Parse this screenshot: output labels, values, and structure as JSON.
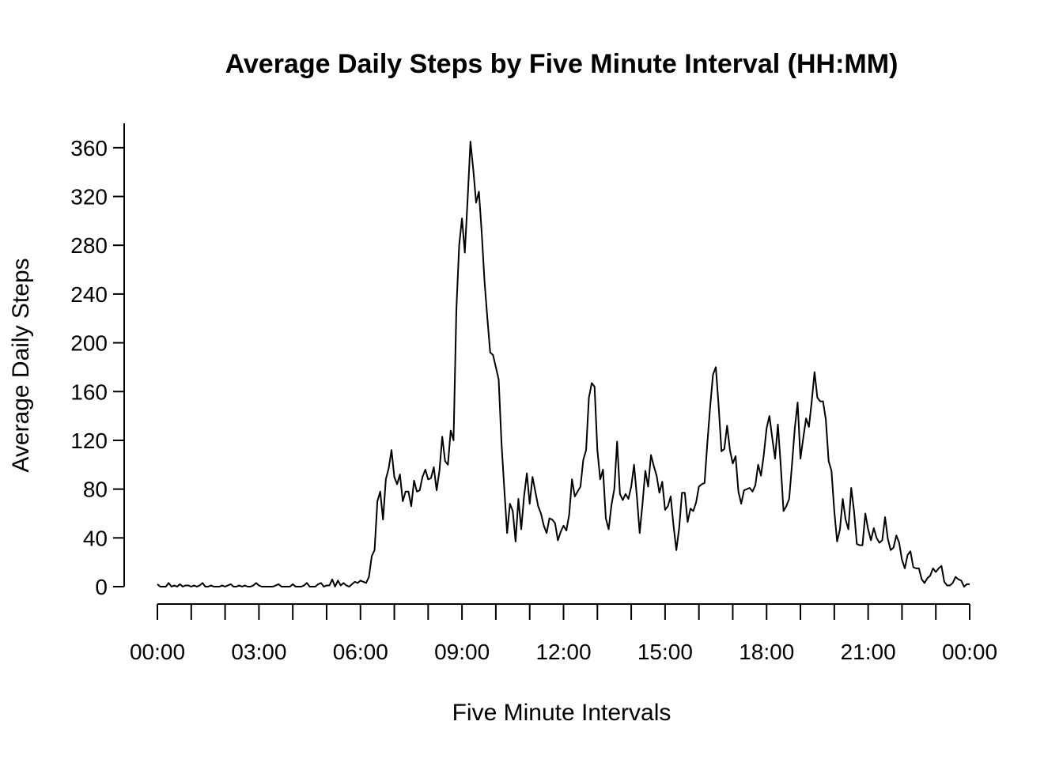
{
  "chart_data": {
    "type": "line",
    "title": "Average Daily Steps by Five Minute Interval (HH:MM)",
    "xlabel": "Five Minute Intervals",
    "ylabel": "Average Daily Steps",
    "xlim": [
      0,
      288
    ],
    "ylim": [
      0,
      380
    ],
    "x_ticks": [
      0,
      36,
      72,
      108,
      144,
      180,
      216,
      252,
      288
    ],
    "x_tick_labels": [
      "00:00",
      "03:00",
      "06:00",
      "09:00",
      "12:00",
      "15:00",
      "18:00",
      "21:00",
      "00:00"
    ],
    "x_minor_ticks": [
      0,
      12,
      24,
      36,
      48,
      60,
      72,
      84,
      96,
      108,
      120,
      132,
      144,
      156,
      168,
      180,
      192,
      204,
      216,
      228,
      240,
      252,
      264,
      276,
      288
    ],
    "y_ticks": [
      0,
      40,
      80,
      120,
      160,
      200,
      240,
      280,
      320,
      360
    ],
    "y_tick_labels": [
      "0",
      "40",
      "80",
      "120",
      "160",
      "200",
      "240",
      "280",
      "320",
      "360"
    ],
    "grid": false,
    "line_color": "#000000",
    "series": [
      {
        "points": [
          [
            0,
            2
          ],
          [
            1,
            0
          ],
          [
            2,
            0
          ],
          [
            3,
            0
          ],
          [
            4,
            3
          ],
          [
            5,
            0
          ],
          [
            6,
            1
          ],
          [
            7,
            0
          ],
          [
            8,
            2
          ],
          [
            9,
            0
          ],
          [
            10,
            1
          ],
          [
            11,
            1
          ],
          [
            12,
            0
          ],
          [
            13,
            1
          ],
          [
            14,
            0
          ],
          [
            15,
            1
          ],
          [
            16,
            3
          ],
          [
            17,
            0
          ],
          [
            18,
            0
          ],
          [
            19,
            1
          ],
          [
            20,
            0
          ],
          [
            21,
            0
          ],
          [
            22,
            0
          ],
          [
            23,
            1
          ],
          [
            24,
            0
          ],
          [
            25,
            1
          ],
          [
            26,
            2
          ],
          [
            27,
            0
          ],
          [
            28,
            0
          ],
          [
            29,
            1
          ],
          [
            30,
            0
          ],
          [
            31,
            1
          ],
          [
            32,
            0
          ],
          [
            33,
            0
          ],
          [
            34,
            1
          ],
          [
            35,
            3
          ],
          [
            36,
            1
          ],
          [
            37,
            0
          ],
          [
            38,
            0
          ],
          [
            39,
            0
          ],
          [
            40,
            0
          ],
          [
            41,
            0
          ],
          [
            42,
            1
          ],
          [
            43,
            2
          ],
          [
            44,
            0
          ],
          [
            45,
            0
          ],
          [
            46,
            0
          ],
          [
            47,
            0
          ],
          [
            48,
            2
          ],
          [
            49,
            0
          ],
          [
            50,
            0
          ],
          [
            51,
            0
          ],
          [
            52,
            1
          ],
          [
            53,
            3
          ],
          [
            54,
            0
          ],
          [
            55,
            0
          ],
          [
            56,
            0
          ],
          [
            57,
            2
          ],
          [
            58,
            3
          ],
          [
            59,
            0
          ],
          [
            60,
            1
          ],
          [
            61,
            1
          ],
          [
            62,
            6
          ],
          [
            63,
            0
          ],
          [
            64,
            5
          ],
          [
            65,
            1
          ],
          [
            66,
            3
          ],
          [
            67,
            1
          ],
          [
            68,
            0
          ],
          [
            69,
            2
          ],
          [
            70,
            4
          ],
          [
            71,
            3
          ],
          [
            72,
            5
          ],
          [
            73,
            4
          ],
          [
            74,
            3
          ],
          [
            75,
            8
          ],
          [
            76,
            25
          ],
          [
            77,
            30
          ],
          [
            78,
            70
          ],
          [
            79,
            78
          ],
          [
            80,
            55
          ],
          [
            81,
            88
          ],
          [
            82,
            97
          ],
          [
            83,
            112
          ],
          [
            84,
            90
          ],
          [
            85,
            84
          ],
          [
            86,
            92
          ],
          [
            87,
            70
          ],
          [
            88,
            78
          ],
          [
            89,
            78
          ],
          [
            90,
            66
          ],
          [
            91,
            87
          ],
          [
            92,
            78
          ],
          [
            93,
            79
          ],
          [
            94,
            90
          ],
          [
            95,
            96
          ],
          [
            96,
            88
          ],
          [
            97,
            89
          ],
          [
            98,
            98
          ],
          [
            99,
            79
          ],
          [
            100,
            95
          ],
          [
            101,
            123
          ],
          [
            102,
            103
          ],
          [
            103,
            100
          ],
          [
            104,
            128
          ],
          [
            105,
            120
          ],
          [
            106,
            227
          ],
          [
            107,
            280
          ],
          [
            108,
            302
          ],
          [
            109,
            274
          ],
          [
            110,
            318
          ],
          [
            111,
            365
          ],
          [
            112,
            342
          ],
          [
            113,
            315
          ],
          [
            114,
            324
          ],
          [
            115,
            290
          ],
          [
            116,
            250
          ],
          [
            117,
            220
          ],
          [
            118,
            192
          ],
          [
            119,
            190
          ],
          [
            120,
            180
          ],
          [
            121,
            170
          ],
          [
            122,
            118
          ],
          [
            123,
            80
          ],
          [
            124,
            44
          ],
          [
            125,
            68
          ],
          [
            126,
            62
          ],
          [
            127,
            37
          ],
          [
            128,
            72
          ],
          [
            129,
            47
          ],
          [
            130,
            74
          ],
          [
            131,
            93
          ],
          [
            132,
            68
          ],
          [
            133,
            90
          ],
          [
            134,
            78
          ],
          [
            135,
            66
          ],
          [
            136,
            60
          ],
          [
            137,
            50
          ],
          [
            138,
            44
          ],
          [
            139,
            56
          ],
          [
            140,
            55
          ],
          [
            141,
            52
          ],
          [
            142,
            38
          ],
          [
            143,
            45
          ],
          [
            144,
            50
          ],
          [
            145,
            46
          ],
          [
            146,
            59
          ],
          [
            147,
            88
          ],
          [
            148,
            74
          ],
          [
            149,
            78
          ],
          [
            150,
            82
          ],
          [
            151,
            104
          ],
          [
            152,
            112
          ],
          [
            153,
            155
          ],
          [
            154,
            167
          ],
          [
            155,
            164
          ],
          [
            156,
            112
          ],
          [
            157,
            88
          ],
          [
            158,
            96
          ],
          [
            159,
            56
          ],
          [
            160,
            47
          ],
          [
            161,
            67
          ],
          [
            162,
            80
          ],
          [
            163,
            119
          ],
          [
            164,
            76
          ],
          [
            165,
            71
          ],
          [
            166,
            76
          ],
          [
            167,
            72
          ],
          [
            168,
            82
          ],
          [
            169,
            100
          ],
          [
            170,
            74
          ],
          [
            171,
            44
          ],
          [
            172,
            68
          ],
          [
            173,
            95
          ],
          [
            174,
            82
          ],
          [
            175,
            108
          ],
          [
            176,
            99
          ],
          [
            177,
            91
          ],
          [
            178,
            77
          ],
          [
            179,
            86
          ],
          [
            180,
            63
          ],
          [
            181,
            66
          ],
          [
            182,
            74
          ],
          [
            183,
            50
          ],
          [
            184,
            30
          ],
          [
            185,
            48
          ],
          [
            186,
            77
          ],
          [
            187,
            77
          ],
          [
            188,
            53
          ],
          [
            189,
            64
          ],
          [
            190,
            62
          ],
          [
            191,
            69
          ],
          [
            192,
            82
          ],
          [
            193,
            84
          ],
          [
            194,
            85
          ],
          [
            195,
            118
          ],
          [
            196,
            148
          ],
          [
            197,
            174
          ],
          [
            198,
            180
          ],
          [
            199,
            148
          ],
          [
            200,
            111
          ],
          [
            201,
            113
          ],
          [
            202,
            132
          ],
          [
            203,
            112
          ],
          [
            204,
            101
          ],
          [
            205,
            107
          ],
          [
            206,
            78
          ],
          [
            207,
            68
          ],
          [
            208,
            79
          ],
          [
            209,
            80
          ],
          [
            210,
            81
          ],
          [
            211,
            78
          ],
          [
            212,
            83
          ],
          [
            213,
            100
          ],
          [
            214,
            91
          ],
          [
            215,
            108
          ],
          [
            216,
            130
          ],
          [
            217,
            140
          ],
          [
            218,
            122
          ],
          [
            219,
            105
          ],
          [
            220,
            133
          ],
          [
            221,
            100
          ],
          [
            222,
            62
          ],
          [
            223,
            66
          ],
          [
            224,
            72
          ],
          [
            225,
            100
          ],
          [
            226,
            130
          ],
          [
            227,
            151
          ],
          [
            228,
            105
          ],
          [
            229,
            122
          ],
          [
            230,
            138
          ],
          [
            231,
            131
          ],
          [
            232,
            152
          ],
          [
            233,
            176
          ],
          [
            234,
            155
          ],
          [
            235,
            152
          ],
          [
            236,
            152
          ],
          [
            237,
            137
          ],
          [
            238,
            103
          ],
          [
            239,
            95
          ],
          [
            240,
            62
          ],
          [
            241,
            37
          ],
          [
            242,
            47
          ],
          [
            243,
            72
          ],
          [
            244,
            55
          ],
          [
            245,
            47
          ],
          [
            246,
            81
          ],
          [
            247,
            62
          ],
          [
            248,
            35
          ],
          [
            249,
            34
          ],
          [
            250,
            34
          ],
          [
            251,
            60
          ],
          [
            252,
            47
          ],
          [
            253,
            38
          ],
          [
            254,
            48
          ],
          [
            255,
            40
          ],
          [
            256,
            36
          ],
          [
            257,
            38
          ],
          [
            258,
            57
          ],
          [
            259,
            39
          ],
          [
            260,
            30
          ],
          [
            261,
            32
          ],
          [
            262,
            42
          ],
          [
            263,
            36
          ],
          [
            264,
            22
          ],
          [
            265,
            15
          ],
          [
            266,
            26
          ],
          [
            267,
            29
          ],
          [
            268,
            16
          ],
          [
            269,
            15
          ],
          [
            270,
            15
          ],
          [
            271,
            6
          ],
          [
            272,
            3
          ],
          [
            273,
            7
          ],
          [
            274,
            9
          ],
          [
            275,
            15
          ],
          [
            276,
            12
          ],
          [
            277,
            15
          ],
          [
            278,
            17
          ],
          [
            279,
            4
          ],
          [
            280,
            1
          ],
          [
            281,
            1
          ],
          [
            282,
            3
          ],
          [
            283,
            8
          ],
          [
            284,
            6
          ],
          [
            285,
            5
          ],
          [
            286,
            0
          ],
          [
            287,
            2
          ],
          [
            288,
            2
          ]
        ]
      }
    ]
  }
}
